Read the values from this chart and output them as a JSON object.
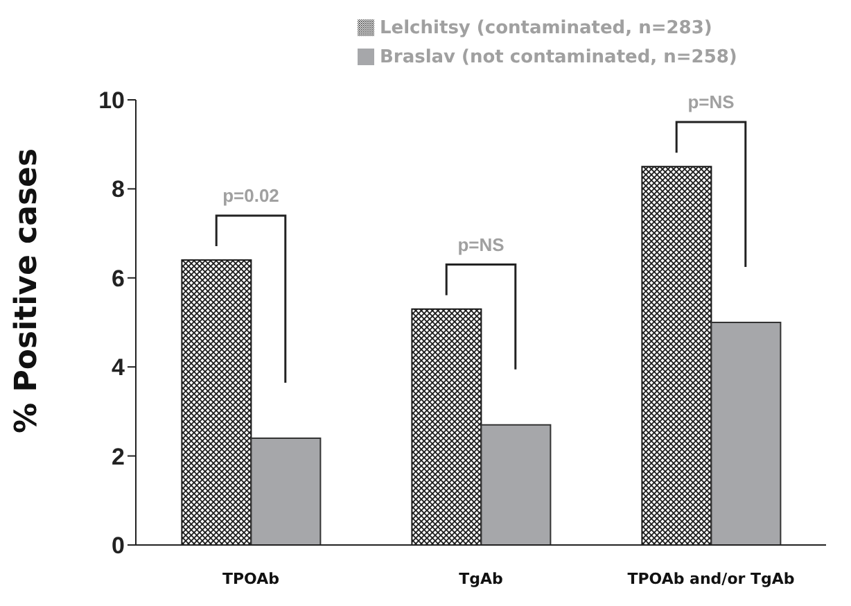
{
  "chart_data": {
    "type": "bar",
    "ylabel": "% Positive cases",
    "categories": [
      "TPOAb",
      "TgAb",
      "TPOAb and/or TgAb"
    ],
    "series": [
      {
        "name": "Lelchitsy (contaminated, n=283)",
        "color": "#1a1a1a",
        "values": [
          6.4,
          5.3,
          8.5
        ]
      },
      {
        "name": "Braslav (not contaminated, n=258)",
        "color": "#a6a7aa",
        "values": [
          2.4,
          2.7,
          5.0
        ]
      }
    ],
    "ylim": [
      0,
      10
    ],
    "yticks": [
      0,
      2,
      4,
      6,
      8,
      10
    ],
    "grid": false,
    "legend": "top",
    "annotations": [
      "p=0.02",
      "p=NS",
      "p=NS"
    ]
  }
}
